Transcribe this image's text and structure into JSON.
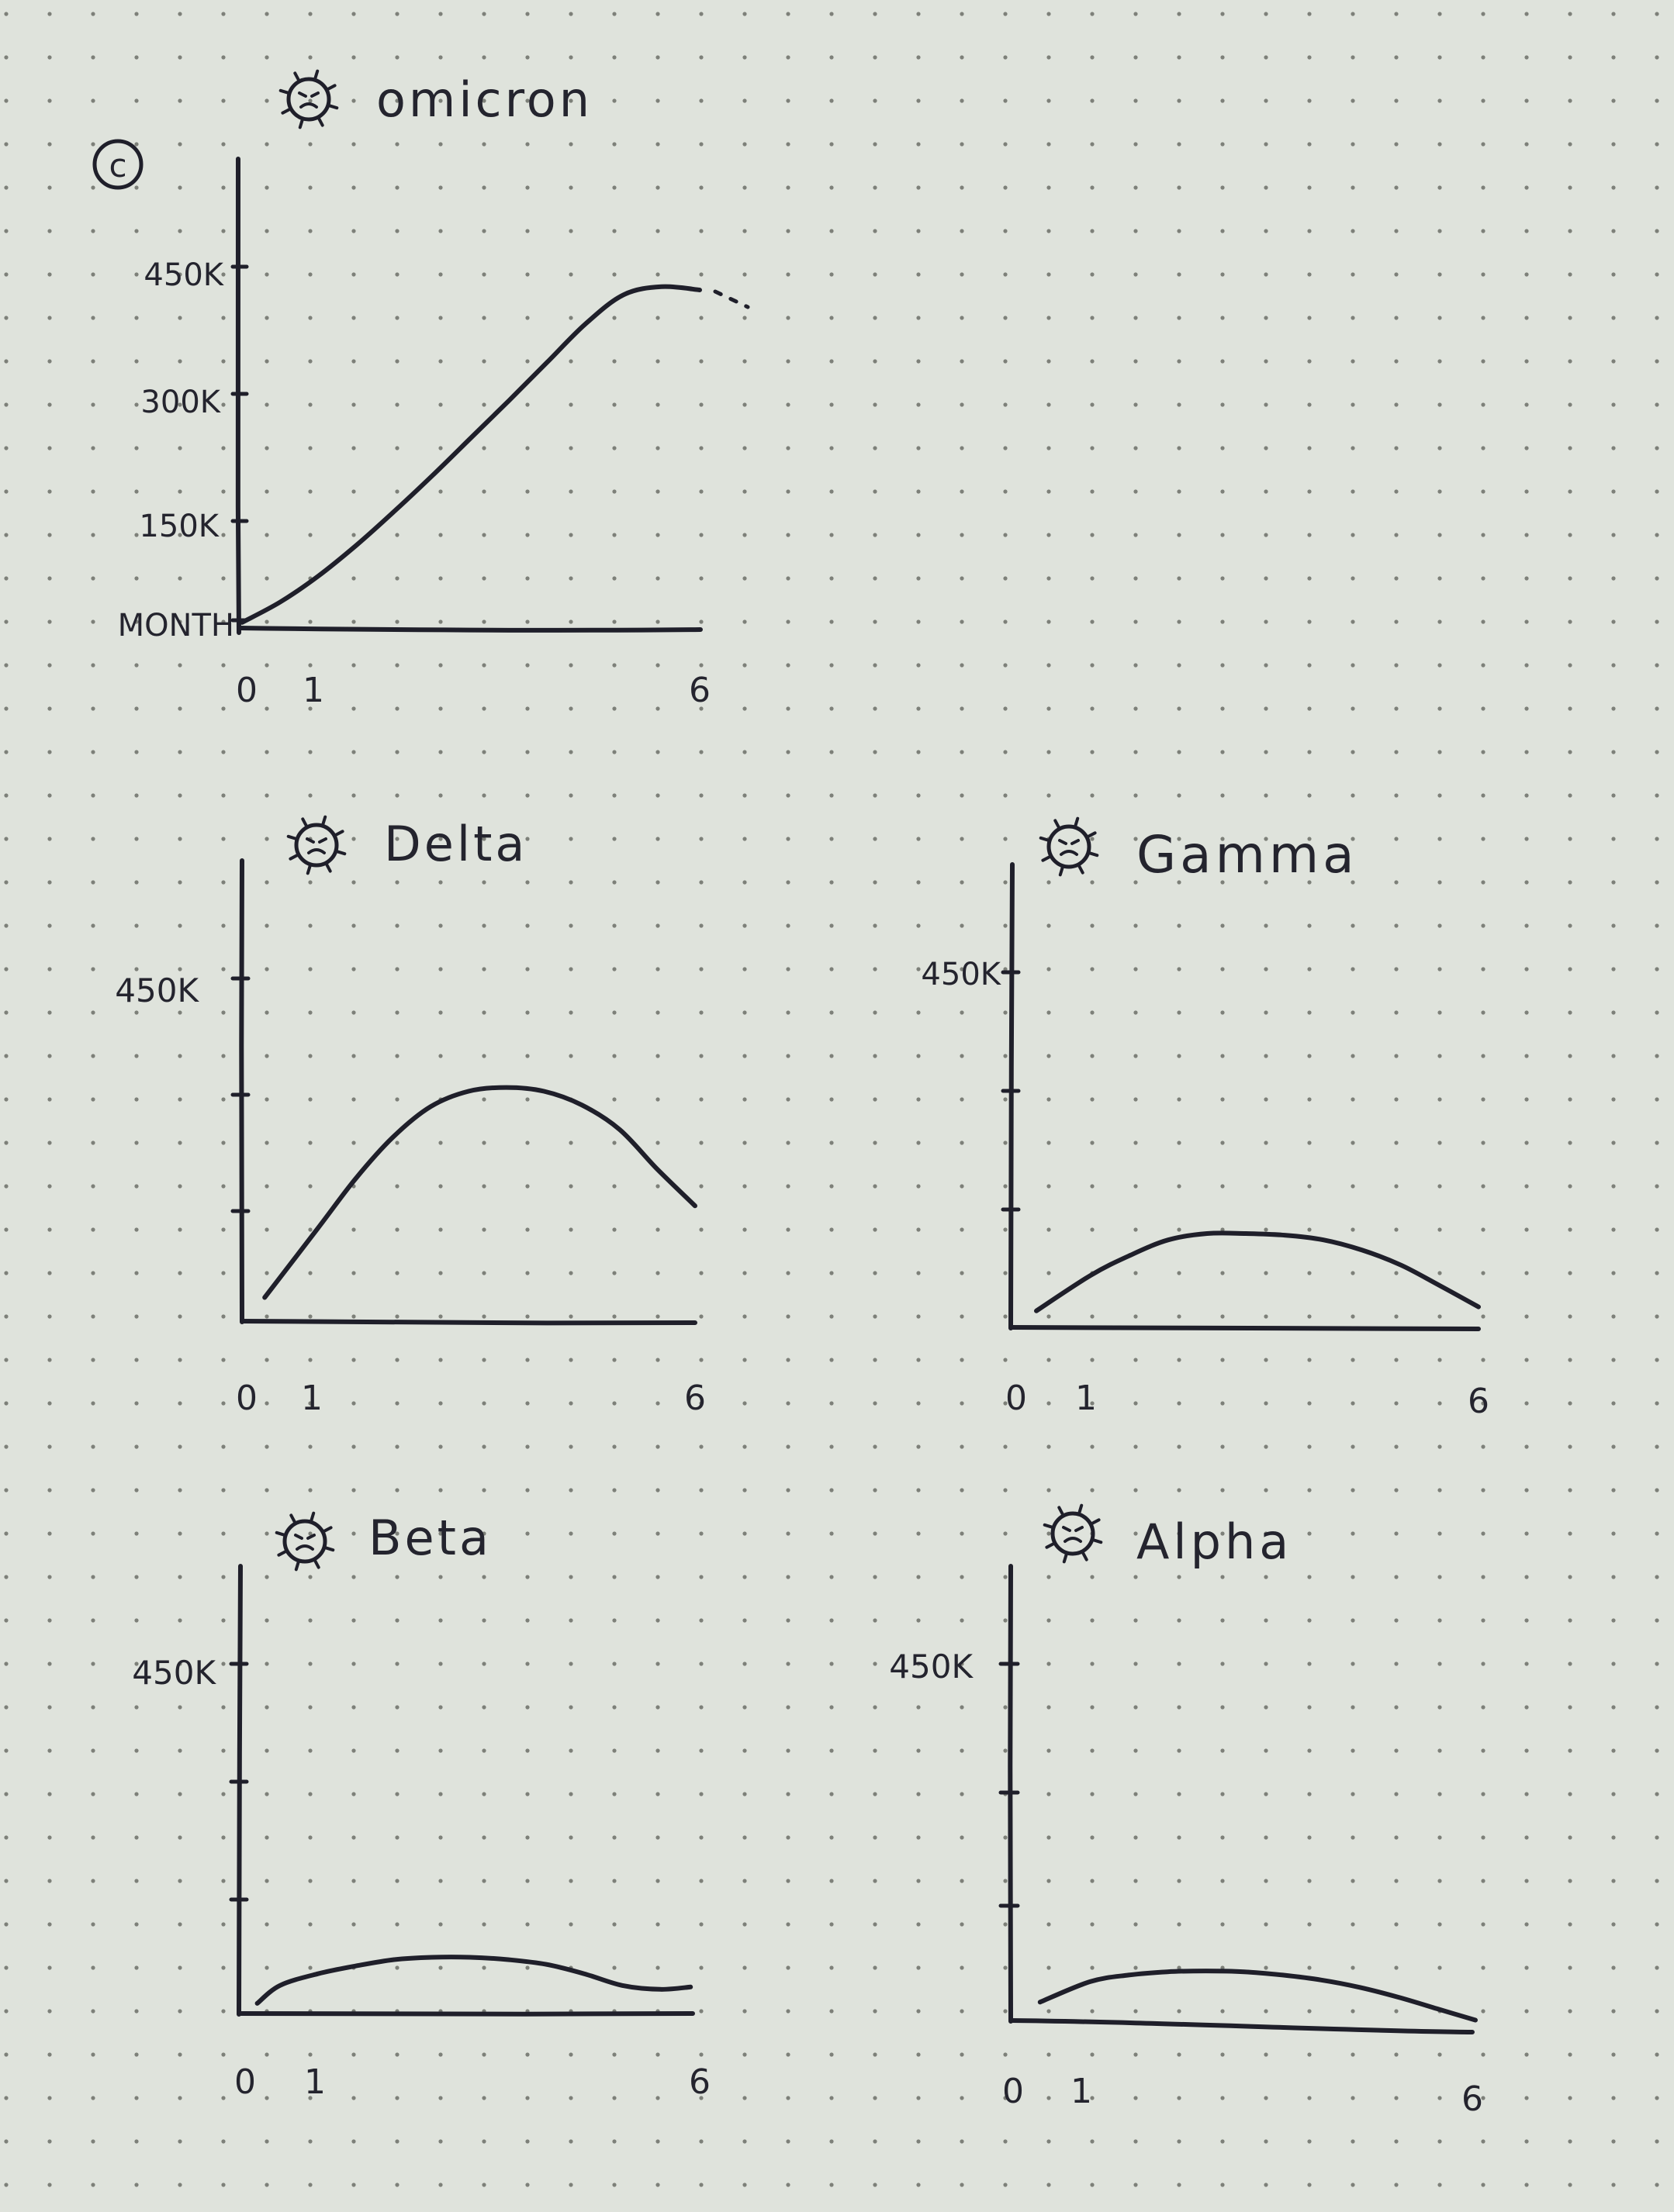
{
  "page": {
    "panel_marker": "c",
    "colors": {
      "paper": "#dfe3dc",
      "ink": "#1f1f2a",
      "dot": "#7d8079"
    }
  },
  "chart_data": [
    {
      "id": "omicron",
      "type": "line",
      "title": "omicron",
      "icon": "virus-icon",
      "xlabel": "",
      "ylabel": "MONTH",
      "xticks": [
        "0",
        "1",
        "6"
      ],
      "yticks": [
        {
          "value": 450000,
          "label": "450K"
        },
        {
          "value": 300000,
          "label": "300K"
        },
        {
          "value": 150000,
          "label": "150K"
        }
      ],
      "ylim": [
        0,
        600000
      ],
      "xlim": [
        0,
        6
      ],
      "x": [
        0,
        0.5,
        1,
        1.5,
        2,
        2.5,
        3,
        3.5,
        4,
        4.5,
        5,
        5.5,
        6
      ],
      "values": [
        5000,
        30000,
        62000,
        100000,
        142000,
        186000,
        232000,
        278000,
        325000,
        372000,
        408000,
        418000,
        414000
      ],
      "continues": true
    },
    {
      "id": "delta",
      "type": "line",
      "title": "Delta",
      "icon": "virus-icon",
      "xticks": [
        "0",
        "1",
        "6"
      ],
      "yticks": [
        {
          "value": 450000,
          "label": "450K"
        },
        {
          "value": 300000,
          "label": ""
        },
        {
          "value": 150000,
          "label": ""
        }
      ],
      "ylim": [
        0,
        600000
      ],
      "xlim": [
        0,
        6
      ],
      "x": [
        0.3,
        1,
        1.5,
        2,
        2.5,
        3,
        3.5,
        4,
        4.5,
        5,
        5.5,
        6
      ],
      "values": [
        30000,
        120000,
        185000,
        240000,
        280000,
        300000,
        305000,
        300000,
        282000,
        250000,
        198000,
        150000
      ]
    },
    {
      "id": "gamma",
      "type": "line",
      "title": "Gamma",
      "icon": "virus-icon",
      "xticks": [
        "0",
        "1",
        "6"
      ],
      "yticks": [
        {
          "value": 450000,
          "label": "450K"
        },
        {
          "value": 300000,
          "label": ""
        },
        {
          "value": 150000,
          "label": ""
        }
      ],
      "ylim": [
        0,
        600000
      ],
      "xlim": [
        0,
        6
      ],
      "x": [
        0.3,
        1,
        1.5,
        2,
        2.5,
        3,
        3.5,
        4,
        4.5,
        5,
        5.5,
        6
      ],
      "values": [
        20000,
        65000,
        90000,
        110000,
        118000,
        118000,
        116000,
        110000,
        97000,
        78000,
        52000,
        25000
      ]
    },
    {
      "id": "beta",
      "type": "line",
      "title": "Beta",
      "icon": "virus-icon",
      "xticks": [
        "0",
        "1",
        "6"
      ],
      "yticks": [
        {
          "value": 450000,
          "label": "450K"
        },
        {
          "value": 300000,
          "label": ""
        },
        {
          "value": 150000,
          "label": ""
        }
      ],
      "ylim": [
        0,
        600000
      ],
      "xlim": [
        0,
        6
      ],
      "x": [
        0.2,
        0.5,
        1,
        1.5,
        2,
        2.5,
        3,
        3.5,
        4,
        4.5,
        5,
        5.5,
        5.9
      ],
      "values": [
        12000,
        35000,
        50000,
        60000,
        68000,
        71000,
        71000,
        68000,
        62000,
        50000,
        35000,
        30000,
        33000
      ]
    },
    {
      "id": "alpha",
      "type": "line",
      "title": "Alpha",
      "icon": "virus-icon",
      "xticks": [
        "0",
        "1",
        "6"
      ],
      "yticks": [
        {
          "value": 450000,
          "label": "450K"
        },
        {
          "value": 300000,
          "label": ""
        },
        {
          "value": 150000,
          "label": ""
        }
      ],
      "ylim": [
        0,
        600000
      ],
      "xlim": [
        0,
        6
      ],
      "x": [
        0.35,
        1,
        1.5,
        2,
        2.5,
        3,
        3.5,
        4,
        4.5,
        5,
        5.5,
        6
      ],
      "values": [
        30000,
        55000,
        63000,
        67000,
        68000,
        67000,
        63000,
        57000,
        48000,
        36000,
        22000,
        8000
      ]
    }
  ]
}
